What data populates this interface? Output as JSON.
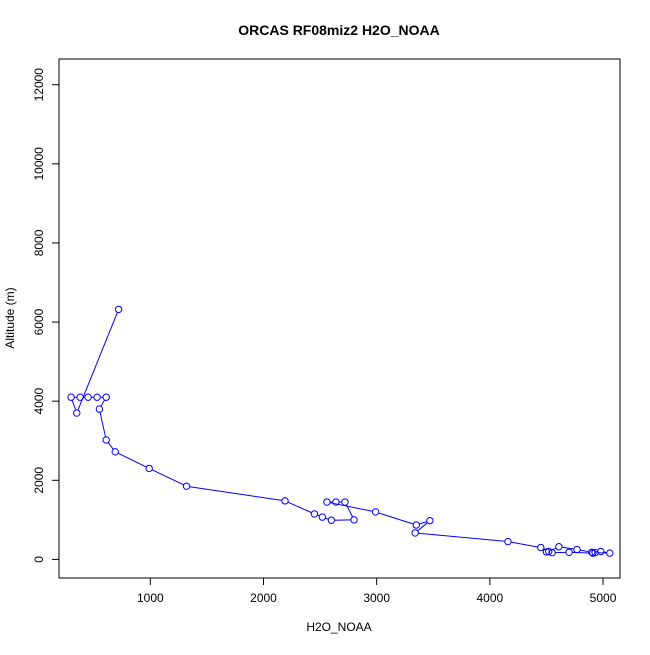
{
  "chart_data": {
    "type": "line",
    "title": "ORCAS RF08miz2 H2O_NOAA",
    "xlabel": "H2O_NOAA",
    "ylabel": "Altitude (m)",
    "xlim": [
      193,
      5150
    ],
    "ylim": [
      -470,
      12650
    ],
    "xticks": [
      1000,
      2000,
      3000,
      4000,
      5000
    ],
    "yticks": [
      0,
      2000,
      4000,
      6000,
      8000,
      10000,
      12000
    ],
    "grid": false,
    "legend": "none",
    "color": "#0000ff",
    "markers": "open-circle",
    "series": [
      {
        "x": [
          720,
          350,
          300,
          380,
          450,
          530,
          610,
          550,
          610,
          690,
          990,
          1320,
          2190,
          2450,
          2520,
          2600,
          2800,
          2720,
          2640,
          2560,
          2990,
          3350,
          3470,
          3340,
          4160,
          4450,
          4520,
          4610,
          4770,
          4900,
          4980,
          5060,
          4930,
          4910,
          4700,
          4550,
          4500
        ],
        "y": [
          6320,
          3700,
          4100,
          4100,
          4100,
          4100,
          4100,
          3800,
          3020,
          2720,
          2300,
          1850,
          1480,
          1150,
          1070,
          990,
          1000,
          1450,
          1450,
          1450,
          1200,
          870,
          980,
          670,
          450,
          300,
          200,
          320,
          250,
          180,
          200,
          160,
          170,
          160,
          180,
          170,
          190
        ]
      }
    ]
  }
}
